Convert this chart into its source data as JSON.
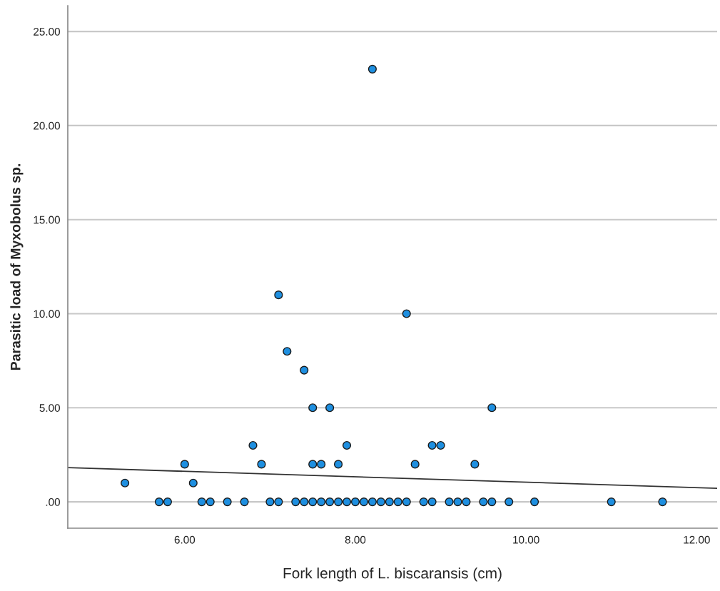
{
  "chart_data": {
    "type": "scatter",
    "xlabel": "Fork length of L. biscaransis (cm)",
    "ylabel": "Parasitic load of Myxobolus sp.",
    "series": [
      {
        "color": "#1e8fe0",
        "marker": "circle",
        "x": [
          5.7,
          5.8,
          6.2,
          6.3,
          6.5,
          6.7,
          7.0,
          7.1,
          7.3,
          7.4,
          7.5,
          7.6,
          7.7,
          7.8,
          7.9,
          8.0,
          8.1,
          8.2,
          8.3,
          8.4,
          8.5,
          8.6,
          8.8,
          8.9,
          9.1,
          9.2,
          9.3,
          9.5,
          9.6,
          9.8,
          10.1,
          11.0,
          11.6,
          5.3,
          6.0,
          6.1,
          6.8,
          6.9,
          7.1,
          7.2,
          7.4,
          7.5,
          7.5,
          7.6,
          7.7,
          7.8,
          7.9,
          8.2,
          8.6,
          8.7,
          8.9,
          9.0,
          9.4,
          9.6
        ],
        "values": [
          0,
          0,
          0,
          0,
          0,
          0,
          0,
          0,
          0,
          0,
          0,
          0,
          0,
          0,
          0,
          0,
          0,
          0,
          0,
          0,
          0,
          0,
          0,
          0,
          0,
          0,
          0,
          0,
          0,
          0,
          0,
          0,
          0,
          1,
          2,
          1,
          3,
          2,
          11,
          8,
          7,
          5,
          2,
          2,
          5,
          2,
          3,
          23,
          10,
          2,
          3,
          3,
          2,
          5
        ]
      },
      {
        "type": "line",
        "marker": "none",
        "color": "#333333",
        "x": [
          4.63,
          12.24
        ],
        "values": [
          1.82,
          0.72
        ]
      }
    ],
    "xlim": [
      4.63,
      12.24
    ],
    "ylim": [
      -1.4,
      26.37
    ],
    "xticks": [
      {
        "value": 6,
        "label": "6.00"
      },
      {
        "value": 8,
        "label": "8.00"
      },
      {
        "value": 10,
        "label": "10.00"
      },
      {
        "value": 12,
        "label": "12.00"
      }
    ],
    "yticks": [
      {
        "value": 0,
        "label": ".00"
      },
      {
        "value": 5,
        "label": "5.00"
      },
      {
        "value": 10,
        "label": "10.00"
      },
      {
        "value": 15,
        "label": "15.00"
      },
      {
        "value": 20,
        "label": "20.00"
      },
      {
        "value": 25,
        "label": "25.00"
      }
    ],
    "grid": "y"
  }
}
